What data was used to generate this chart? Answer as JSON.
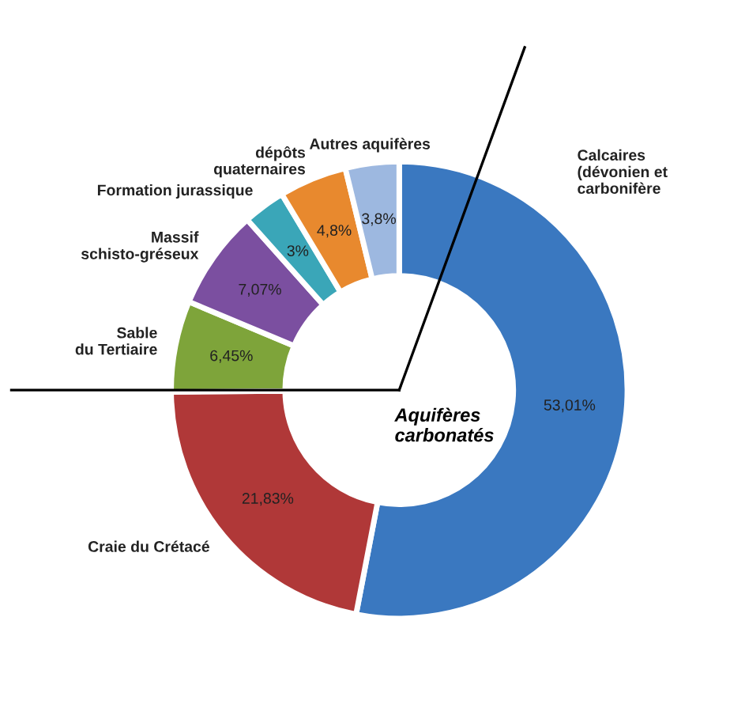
{
  "chart_data": {
    "type": "donut",
    "categories": [
      "Calcaires\n(dévonien et\ncarbonifère",
      "Craie du Crétacé",
      "Sable\ndu Tertiaire",
      "Massif\nschisto-gréseux",
      "Formation jurassique",
      "dépôts\nquaternaires",
      "Autres aquifères"
    ],
    "values": [
      53.01,
      21.83,
      6.45,
      7.07,
      3,
      4.8,
      3.8
    ],
    "value_labels": [
      "53,01%",
      "21,83%",
      "6,45%",
      "7,07%",
      "3%",
      "4,8%",
      "3,8%"
    ],
    "colors": [
      "#3a78c0",
      "#b03838",
      "#7ea43a",
      "#7b4fa0",
      "#3aa6b8",
      "#e8892e",
      "#9db8e0"
    ],
    "annotations": [
      "Aquifères\ncarbonatés"
    ],
    "legend": false
  }
}
